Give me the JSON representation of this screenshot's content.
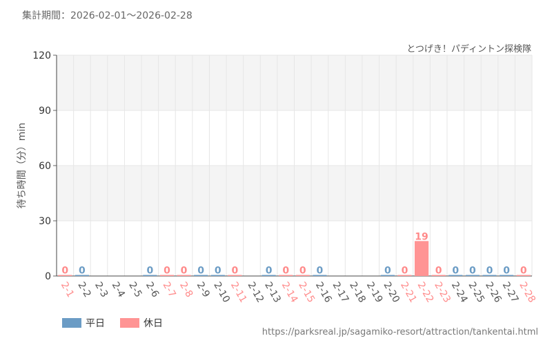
{
  "header": {
    "period": "集計期間：2026-02-01～2026-02-28",
    "subtitle": "とつげき！パディントン探検隊"
  },
  "footer": {
    "source": "https://parksreal.jp/sagamiko-resort/attraction/tankentai.html"
  },
  "legend": {
    "weekday_label": "平日",
    "holiday_label": "休日"
  },
  "colors": {
    "weekday": "#6b9cc5",
    "holiday": "#ff9494",
    "label_weekday": "#555555",
    "label_holiday": "#ff8a8a",
    "grid": "#e6e6e6",
    "band": "#f4f4f4"
  },
  "chart_data": {
    "type": "bar",
    "ylabel": "待ち時間（分）min",
    "ylim": [
      0,
      120
    ],
    "yticks": [
      0,
      30,
      60,
      90,
      120
    ],
    "grid": true,
    "legend_position": "bottom-left",
    "categories": [
      "2-1",
      "2-2",
      "2-3",
      "2-4",
      "2-5",
      "2-6",
      "2-7",
      "2-8",
      "2-9",
      "2-10",
      "2-11",
      "2-12",
      "2-13",
      "2-14",
      "2-15",
      "2-16",
      "2-17",
      "2-18",
      "2-19",
      "2-20",
      "2-21",
      "2-22",
      "2-23",
      "2-24",
      "2-25",
      "2-26",
      "2-27",
      "2-28"
    ],
    "day_type": [
      "holiday",
      "weekday",
      "weekday",
      "weekday",
      "weekday",
      "weekday",
      "holiday",
      "holiday",
      "weekday",
      "weekday",
      "holiday",
      "weekday",
      "weekday",
      "holiday",
      "holiday",
      "weekday",
      "weekday",
      "weekday",
      "weekday",
      "weekday",
      "holiday",
      "holiday",
      "holiday",
      "weekday",
      "weekday",
      "weekday",
      "weekday",
      "holiday"
    ],
    "values": [
      0,
      0,
      null,
      null,
      null,
      0,
      0,
      0,
      0,
      0,
      0,
      null,
      0,
      0,
      0,
      0,
      null,
      null,
      null,
      0,
      0,
      19,
      0,
      0,
      0,
      0,
      0,
      0
    ],
    "series": [
      {
        "name": "平日",
        "type": "weekday"
      },
      {
        "name": "休日",
        "type": "holiday"
      }
    ]
  }
}
